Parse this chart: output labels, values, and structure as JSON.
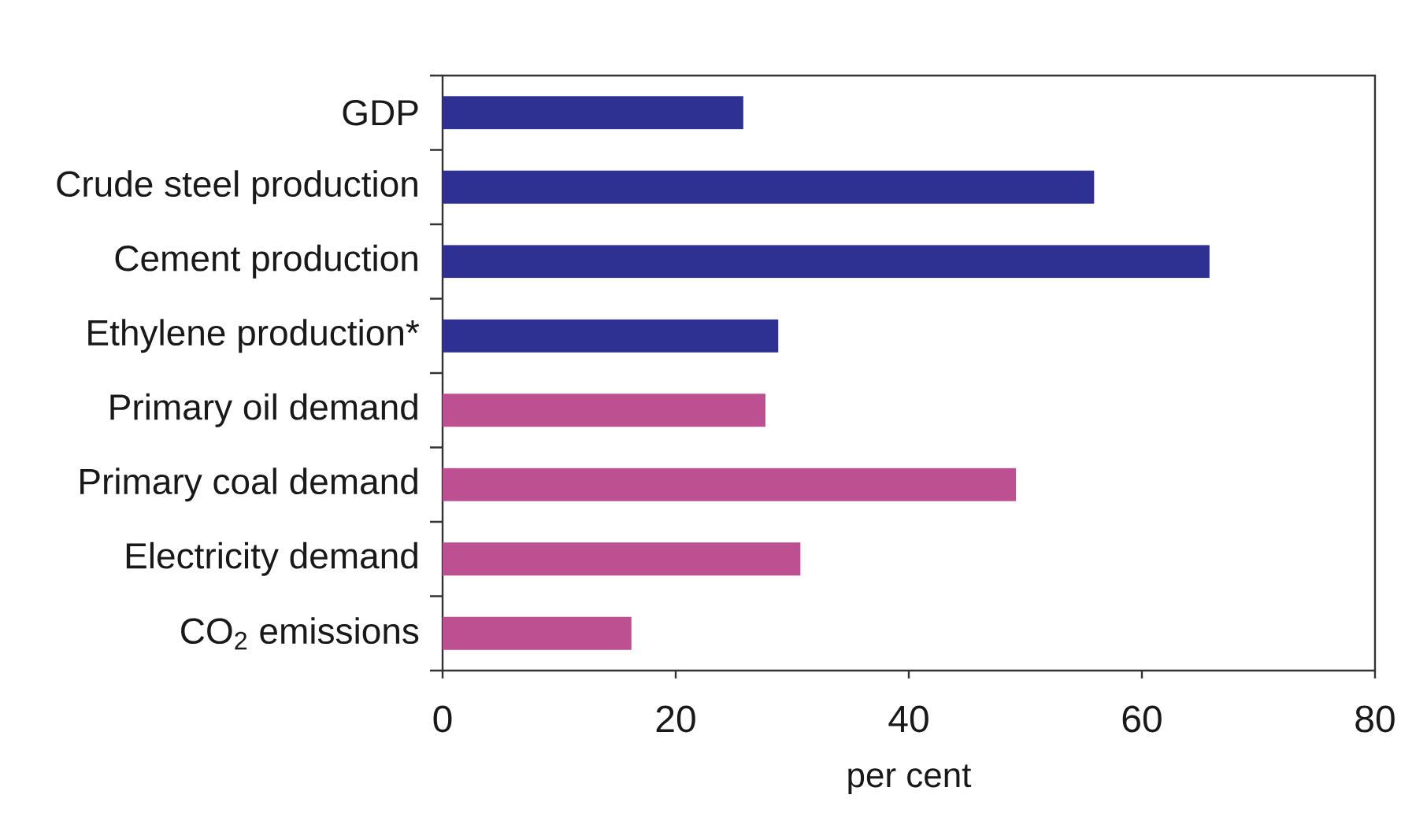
{
  "chart_data": {
    "type": "bar",
    "orientation": "horizontal",
    "categories": [
      "GDP",
      "Crude steel production",
      "Cement production",
      "Ethylene production*",
      "Primary oil demand",
      "Primary coal demand",
      "Electricity demand",
      "CO$_{2}$ emissions"
    ],
    "values": [
      25.8,
      55.9,
      65.8,
      28.8,
      27.7,
      49.2,
      30.7,
      16.2
    ],
    "colors": [
      "#2e3192",
      "#2e3192",
      "#2e3192",
      "#2e3192",
      "#bd5090",
      "#bd5090",
      "#bd5090",
      "#bd5090"
    ],
    "xlabel": "per cent",
    "xlim": [
      0,
      80
    ],
    "xticks": [
      0,
      20,
      40,
      60,
      80
    ]
  }
}
